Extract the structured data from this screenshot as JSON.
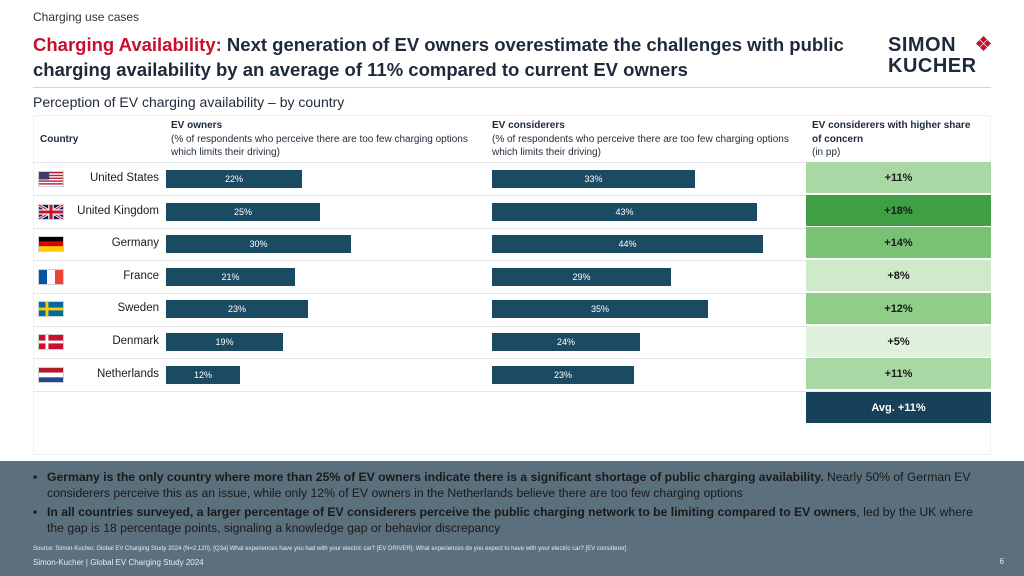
{
  "kicker": "Charging use cases",
  "title": {
    "accent": "Charging Availability:",
    "rest": " Next generation of EV owners overestimate the challenges with public charging availability by an average of 11% compared to current EV owners"
  },
  "logo": {
    "line1": "SIMON",
    "line2": "KUCHER"
  },
  "subtitle": "Perception of EV charging availability – by country",
  "headers": {
    "country": "Country",
    "owners_title": "EV owners",
    "owners_desc": "(% of respondents who perceive there are too few charging options which limits their driving)",
    "considerers_title": "EV considerers",
    "considerers_desc": "(% of respondents who perceive there are too few charging options which limits their driving)",
    "concern_title": "EV considerers with higher share of concern",
    "concern_unit": "(in pp)"
  },
  "chart_data": {
    "type": "bar",
    "orientation": "horizontal",
    "categories": [
      "United States",
      "United Kingdom",
      "Germany",
      "France",
      "Sweden",
      "Denmark",
      "Netherlands"
    ],
    "series": [
      {
        "name": "EV owners",
        "values": [
          22,
          25,
          30,
          21,
          23,
          19,
          12
        ],
        "labels": [
          "22%",
          "25%",
          "30%",
          "21%",
          "23%",
          "19%",
          "12%"
        ]
      },
      {
        "name": "EV considerers",
        "values": [
          33,
          43,
          44,
          29,
          35,
          24,
          23
        ],
        "labels": [
          "33%",
          "43%",
          "44%",
          "29%",
          "35%",
          "24%",
          "23%"
        ]
      }
    ],
    "difference": {
      "name": "EV considerers with higher share of concern",
      "values": [
        11,
        18,
        14,
        8,
        12,
        5,
        11
      ],
      "labels": [
        "+11%",
        "+18%",
        "+14%",
        "+8%",
        "+12%",
        "+5%",
        "+11%"
      ]
    },
    "average_label": "Avg. +11%",
    "xlim": [
      0,
      50
    ]
  },
  "colors": {
    "bar": "#1b4a63",
    "accent": "#c8102e",
    "avg_bg": "#17405a",
    "concern_scale": {
      "5": "#dff0dc",
      "8": "#cfe9cb",
      "11": "#a9d8a4",
      "12": "#8fcd89",
      "14": "#79c273",
      "18": "#3f9f45"
    }
  },
  "bullets": [
    {
      "bold": "Germany is the only country where more than  25% of EV owners indicate there is a significant shortage of public charging availability.",
      "rest": " Nearly 50% of German EV considerers perceive this as an issue, while only 12% of EV owners in the Netherlands believe there are too few charging options"
    },
    {
      "bold": "In all countries surveyed, a larger percentage of EV considerers perceive the public charging network to be limiting compared to EV owners",
      "rest": ", led by the UK where the gap is 18 percentage points, signaling a knowledge gap or behavior discrepancy"
    }
  ],
  "source": "Source: Simon-Kucher, Global EV Charging Study 2024 (N=2,120); [Q3a] What experiences have you had with your electric car? [EV DRIVER]; What experiences do you expect to have with your electric car? [EV considerer]",
  "study": "Simon-Kucher | Global EV Charging Study 2024",
  "page_number": "6"
}
